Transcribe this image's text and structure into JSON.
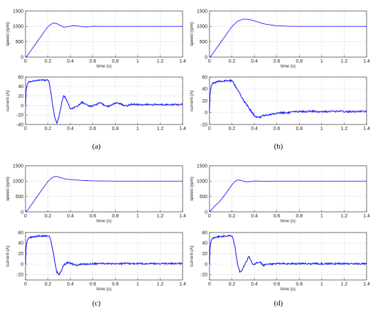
{
  "colors": {
    "line": "#1a1aff",
    "grid": "#c8c8c8",
    "axis": "#333333"
  },
  "chart_data": [
    {
      "id": "a-speed",
      "panel": "a",
      "type": "line",
      "xlabel": "time (s)",
      "ylabel": "speed (rpm)",
      "xlim": [
        0,
        1.4
      ],
      "ylim": [
        0,
        1500
      ],
      "xticks": [
        0,
        0.2,
        0.4,
        0.6,
        0.8,
        1,
        1.2,
        1.4
      ],
      "yticks": [
        0,
        500,
        1000,
        1500
      ],
      "grid": true,
      "series": [
        {
          "x": [
            0,
            0.02,
            0.05,
            0.1,
            0.15,
            0.2,
            0.24,
            0.26,
            0.28,
            0.31,
            0.34,
            0.38,
            0.42,
            0.46,
            0.5,
            0.55,
            0.6,
            0.7,
            0.8,
            1.0,
            1.2,
            1.4
          ],
          "y": [
            0,
            60,
            220,
            480,
            740,
            990,
            1100,
            1110,
            1090,
            1030,
            975,
            990,
            1020,
            1015,
            995,
            985,
            1005,
            1000,
            1000,
            1000,
            1000,
            1000
          ]
        }
      ]
    },
    {
      "id": "a-current",
      "panel": "a",
      "type": "line",
      "xlabel": "",
      "ylabel": "current (A)",
      "xlim": [
        0,
        1.4
      ],
      "ylim": [
        -40,
        60
      ],
      "xticks": [
        0,
        0.2,
        0.4,
        0.6,
        0.8,
        1,
        1.2,
        1.4
      ],
      "yticks": [
        -40,
        -20,
        0,
        20,
        40,
        60
      ],
      "grid": true,
      "series": [
        {
          "x": [
            0,
            0.005,
            0.015,
            0.03,
            0.1,
            0.2,
            0.21,
            0.22,
            0.24,
            0.26,
            0.28,
            0.3,
            0.32,
            0.34,
            0.37,
            0.4,
            0.43,
            0.46,
            0.5,
            0.53,
            0.57,
            0.62,
            0.66,
            0.7,
            0.74,
            0.78,
            0.82,
            0.86,
            0.9,
            0.95,
            1.0,
            1.1,
            1.2,
            1.3,
            1.4
          ],
          "y": [
            0,
            30,
            45,
            50,
            53,
            54,
            50,
            35,
            5,
            -25,
            -38,
            -22,
            2,
            22,
            10,
            -8,
            -5,
            -2,
            7,
            4,
            -2,
            1,
            6,
            1,
            -2,
            3,
            6,
            2,
            -1,
            3,
            2,
            2,
            2,
            2,
            2
          ]
        }
      ]
    },
    {
      "id": "b-speed",
      "panel": "b",
      "type": "line",
      "xlabel": "time (s)",
      "ylabel": "speed (rpm)",
      "xlim": [
        0,
        1.4
      ],
      "ylim": [
        0,
        1500
      ],
      "xticks": [
        0,
        0.2,
        0.4,
        0.6,
        0.8,
        1,
        1.2,
        1.4
      ],
      "yticks": [
        0,
        500,
        1000,
        1500
      ],
      "grid": true,
      "series": [
        {
          "x": [
            0,
            0.02,
            0.05,
            0.1,
            0.15,
            0.2,
            0.25,
            0.3,
            0.35,
            0.4,
            0.45,
            0.5,
            0.6,
            0.7,
            0.8,
            0.9,
            1.0,
            1.2,
            1.4
          ],
          "y": [
            0,
            60,
            220,
            480,
            740,
            990,
            1170,
            1235,
            1230,
            1180,
            1120,
            1070,
            1020,
            1005,
            1000,
            1000,
            1000,
            1000,
            1000
          ]
        }
      ]
    },
    {
      "id": "b-current",
      "panel": "b",
      "type": "line",
      "xlabel": "",
      "ylabel": "current (A)",
      "xlim": [
        0,
        1.4
      ],
      "ylim": [
        -20,
        60
      ],
      "xticks": [
        0,
        0.2,
        0.4,
        0.6,
        0.8,
        1,
        1.2,
        1.4
      ],
      "yticks": [
        -20,
        0,
        20,
        40,
        60
      ],
      "grid": true,
      "series": [
        {
          "x": [
            0,
            0.005,
            0.015,
            0.03,
            0.1,
            0.2,
            0.22,
            0.25,
            0.3,
            0.35,
            0.4,
            0.43,
            0.46,
            0.5,
            0.55,
            0.6,
            0.65,
            0.7,
            0.75,
            0.8,
            0.9,
            1.0,
            1.2,
            1.4
          ],
          "y": [
            0,
            30,
            45,
            50,
            53,
            54,
            48,
            38,
            22,
            8,
            -5,
            -8,
            -7,
            -4,
            -3,
            -1,
            0,
            0,
            1,
            2,
            2,
            2,
            2,
            2
          ]
        }
      ]
    },
    {
      "id": "c-speed",
      "panel": "c",
      "type": "line",
      "xlabel": "time (s)",
      "ylabel": "speed (rpm)",
      "xlim": [
        0,
        1.4
      ],
      "ylim": [
        0,
        1500
      ],
      "xticks": [
        0,
        0.2,
        0.4,
        0.6,
        0.8,
        1,
        1.2,
        1.4
      ],
      "yticks": [
        0,
        500,
        1000,
        1500
      ],
      "grid": true,
      "series": [
        {
          "x": [
            0,
            0.02,
            0.05,
            0.1,
            0.15,
            0.2,
            0.24,
            0.27,
            0.3,
            0.34,
            0.38,
            0.45,
            0.5,
            0.6,
            0.7,
            0.8,
            1.0,
            1.2,
            1.4
          ],
          "y": [
            0,
            60,
            220,
            480,
            740,
            990,
            1120,
            1160,
            1130,
            1085,
            1060,
            1040,
            1025,
            1010,
            1005,
            1000,
            1000,
            1000,
            1000
          ]
        }
      ]
    },
    {
      "id": "c-current",
      "panel": "c",
      "type": "line",
      "xlabel": "time (s)",
      "ylabel": "current (A)",
      "xlim": [
        0,
        1.4
      ],
      "ylim": [
        -30,
        60
      ],
      "xticks": [
        0,
        0.2,
        0.4,
        0.6,
        0.8,
        1,
        1.2,
        1.4
      ],
      "yticks": [
        -20,
        0,
        20,
        40,
        60
      ],
      "grid": true,
      "series": [
        {
          "x": [
            0,
            0.005,
            0.015,
            0.03,
            0.1,
            0.2,
            0.22,
            0.24,
            0.26,
            0.28,
            0.3,
            0.32,
            0.34,
            0.37,
            0.4,
            0.43,
            0.46,
            0.5,
            0.55,
            0.6,
            0.7,
            0.8,
            1.0,
            1.2,
            1.4
          ],
          "y": [
            0,
            30,
            45,
            50,
            53,
            54,
            50,
            30,
            5,
            -15,
            -20,
            -12,
            -2,
            3,
            2,
            -1,
            -2,
            0,
            0,
            1,
            1,
            1,
            1,
            1,
            1
          ]
        }
      ]
    },
    {
      "id": "d-speed",
      "panel": "d",
      "type": "line",
      "xlabel": "time (s)",
      "ylabel": "speed (rpm)",
      "xlim": [
        0,
        1.4
      ],
      "ylim": [
        0,
        1500
      ],
      "xticks": [
        0,
        0.2,
        0.4,
        0.6,
        0.8,
        1,
        1.2,
        1.4
      ],
      "yticks": [
        0,
        500,
        1000,
        1500
      ],
      "grid": true,
      "series": [
        {
          "x": [
            0,
            0.02,
            0.05,
            0.08,
            0.1,
            0.15,
            0.2,
            0.23,
            0.25,
            0.28,
            0.31,
            0.34,
            0.37,
            0.4,
            0.45,
            0.5,
            0.6,
            0.8,
            1.0,
            1.2,
            1.4
          ],
          "y": [
            0,
            80,
            200,
            300,
            380,
            620,
            880,
            1000,
            1040,
            1030,
            990,
            975,
            990,
            1005,
            1000,
            995,
            1000,
            1000,
            1000,
            1000,
            1000
          ]
        }
      ]
    },
    {
      "id": "d-current",
      "panel": "d",
      "type": "line",
      "xlabel": "time (s)",
      "ylabel": "current (A)",
      "xlim": [
        0,
        1.4
      ],
      "ylim": [
        -30,
        60
      ],
      "xticks": [
        0,
        0.2,
        0.4,
        0.6,
        0.8,
        1,
        1.2,
        1.4
      ],
      "yticks": [
        -20,
        0,
        20,
        40,
        60
      ],
      "grid": true,
      "series": [
        {
          "x": [
            0,
            0.005,
            0.015,
            0.03,
            0.1,
            0.2,
            0.21,
            0.23,
            0.25,
            0.27,
            0.29,
            0.31,
            0.33,
            0.35,
            0.37,
            0.39,
            0.42,
            0.45,
            0.48,
            0.52,
            0.56,
            0.6,
            0.7,
            0.8,
            1.0,
            1.2,
            1.4
          ],
          "y": [
            0,
            30,
            45,
            50,
            53,
            54,
            50,
            28,
            0,
            -15,
            -12,
            -2,
            5,
            15,
            8,
            -2,
            2,
            4,
            -2,
            1,
            0,
            1,
            1,
            1,
            1,
            1,
            1
          ]
        }
      ]
    }
  ],
  "captions": {
    "a": "(a)",
    "b": "(b)",
    "c": "(c)",
    "d": "(d)"
  }
}
